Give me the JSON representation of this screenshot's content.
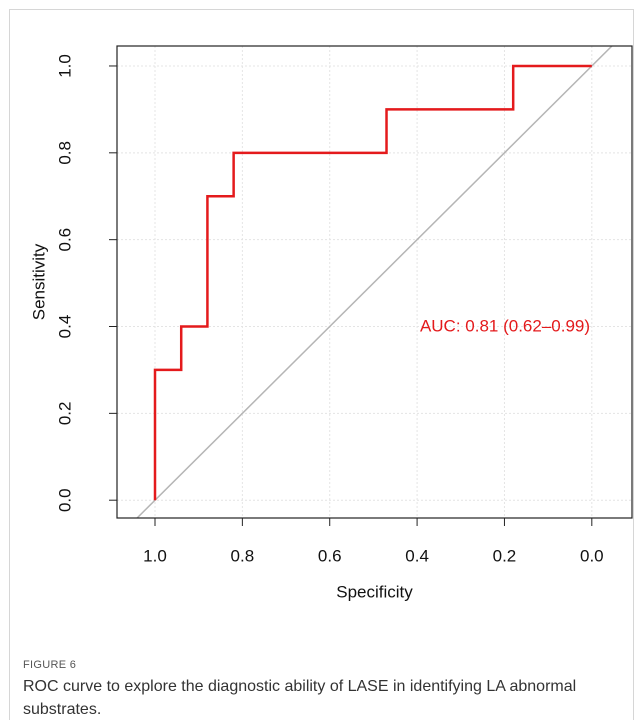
{
  "chart_data": {
    "type": "line",
    "x_label": "Specificity",
    "y_label": "Sensitivity",
    "annotation": "AUC: 0.81 (0.62–0.99)",
    "x": [
      1,
      1,
      0.94,
      0.94,
      0.88,
      0.88,
      0.82,
      0.82,
      0.47,
      0.47,
      0.18,
      0.18,
      0
    ],
    "values": [
      0,
      0.3,
      0.3,
      0.4,
      0.4,
      0.7,
      0.7,
      0.8,
      0.8,
      0.9,
      0.9,
      1,
      1
    ],
    "color": "#e41a1c",
    "xlim": [
      1.087,
      -0.092
    ],
    "ylim": [
      -0.041,
      1.046
    ],
    "xticks": [
      {
        "value": 1,
        "label": "1.0"
      },
      0.8,
      0.6,
      0.4,
      0.2,
      {
        "value": 0,
        "label": "0.0"
      }
    ],
    "yticks": [
      {
        "value": 0,
        "label": "0.0"
      },
      0.2,
      0.4,
      0.6,
      0.8,
      {
        "value": 1,
        "label": "1.0"
      }
    ],
    "grid": true
  },
  "figure": {
    "label": "FIGURE 6",
    "caption": "ROC curve to explore the diagnostic ability of LASE in identifying LA abnormal substrates."
  }
}
